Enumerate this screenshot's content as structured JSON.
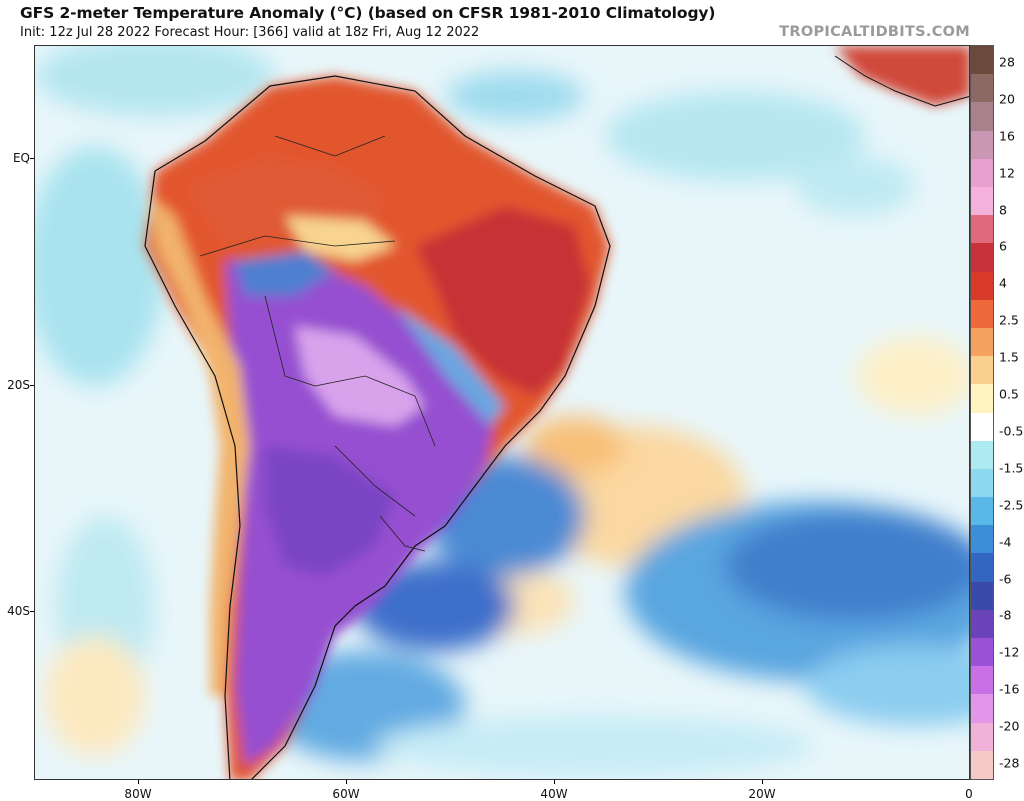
{
  "header": {
    "title": "GFS 2-meter Temperature Anomaly (°C) (based on CFSR 1981-2010 Climatology)",
    "subtitle": "Init: 12z Jul 28 2022   Forecast Hour: [366]   valid at 18z Fri, Aug 12 2022",
    "brand": "TROPICALTIDBITS.COM"
  },
  "axes": {
    "lat_labels": [
      "EQ",
      "20S",
      "40S"
    ],
    "lon_labels": [
      "80W",
      "60W",
      "40W",
      "20W",
      "0"
    ]
  },
  "colorbar": {
    "labels": [
      "28",
      "20",
      "16",
      "12",
      "8",
      "6",
      "4",
      "2.5",
      "1.5",
      "0.5",
      "-0.5",
      "-1.5",
      "-2.5",
      "-4",
      "-6",
      "-8",
      "-12",
      "-16",
      "-20",
      "-28"
    ],
    "colors": [
      "#6b4a3c",
      "#8a6a62",
      "#a9818c",
      "#c996b4",
      "#e79fd0",
      "#f4b1dc",
      "#e06a7c",
      "#c8323a",
      "#d83a2a",
      "#ee6a3a",
      "#f7a160",
      "#fbd08e",
      "#fff4c0",
      "#ffffff",
      "#aeeaf2",
      "#8cd8ee",
      "#5ab8e8",
      "#3a8fd8",
      "#3266c0",
      "#3a4aa8",
      "#6a44b8",
      "#9c52d6",
      "#c970e6",
      "#e296ea",
      "#f0b2d8",
      "#f6c9c9"
    ]
  }
}
